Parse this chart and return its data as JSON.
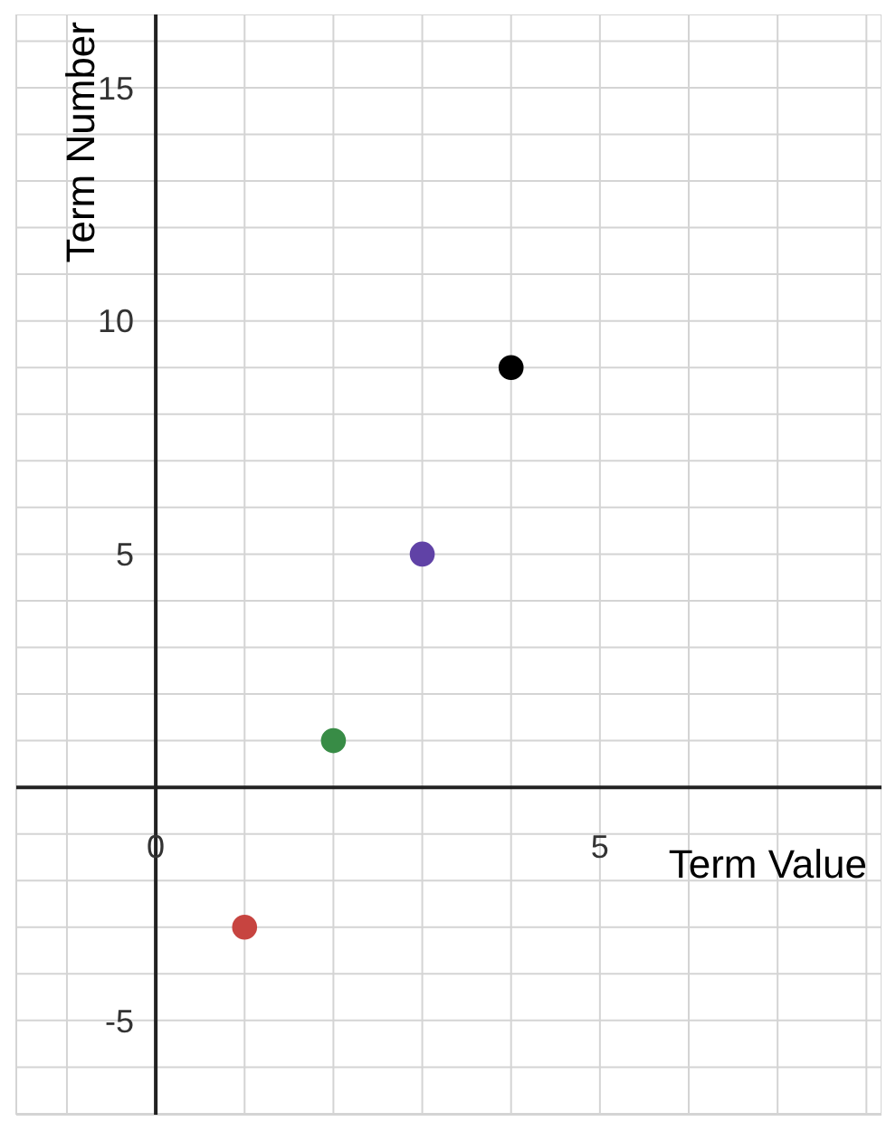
{
  "chart_data": {
    "type": "scatter",
    "xlabel": "Term Value",
    "ylabel": "Term Number",
    "x": [
      1,
      2,
      3,
      4
    ],
    "values": [
      -3,
      1,
      5,
      9
    ],
    "colors": [
      "#c74440",
      "#388c46",
      "#6042a6",
      "#000000"
    ],
    "xlim": [
      -1.57,
      8.17
    ],
    "ylim": [
      -7.02,
      16.57
    ],
    "xticks": [
      {
        "value": -1,
        "label": null
      },
      0,
      {
        "value": 1,
        "label": null
      },
      {
        "value": 2,
        "label": null
      },
      {
        "value": 3,
        "label": null
      },
      {
        "value": 4,
        "label": null
      },
      5,
      {
        "value": 6,
        "label": null
      },
      {
        "value": 7,
        "label": null
      },
      {
        "value": 8,
        "label": null
      }
    ],
    "yticks": [
      {
        "value": -7,
        "label": null
      },
      {
        "value": -6,
        "label": null
      },
      -5,
      {
        "value": -4,
        "label": null
      },
      {
        "value": -3,
        "label": null
      },
      {
        "value": -2,
        "label": null
      },
      {
        "value": -1,
        "label": null
      },
      {
        "value": 0,
        "label": null
      },
      {
        "value": 1,
        "label": null
      },
      {
        "value": 2,
        "label": null
      },
      {
        "value": 3,
        "label": null
      },
      {
        "value": 4,
        "label": null
      },
      5,
      {
        "value": 6,
        "label": null
      },
      {
        "value": 7,
        "label": null
      },
      {
        "value": 8,
        "label": null
      },
      {
        "value": 9,
        "label": null
      },
      10,
      {
        "value": 11,
        "label": null
      },
      {
        "value": 12,
        "label": null
      },
      {
        "value": 13,
        "label": null
      },
      {
        "value": 14,
        "label": null
      },
      15,
      {
        "value": 16,
        "label": null
      }
    ],
    "grid": true,
    "marker": "circle",
    "legend": false
  }
}
